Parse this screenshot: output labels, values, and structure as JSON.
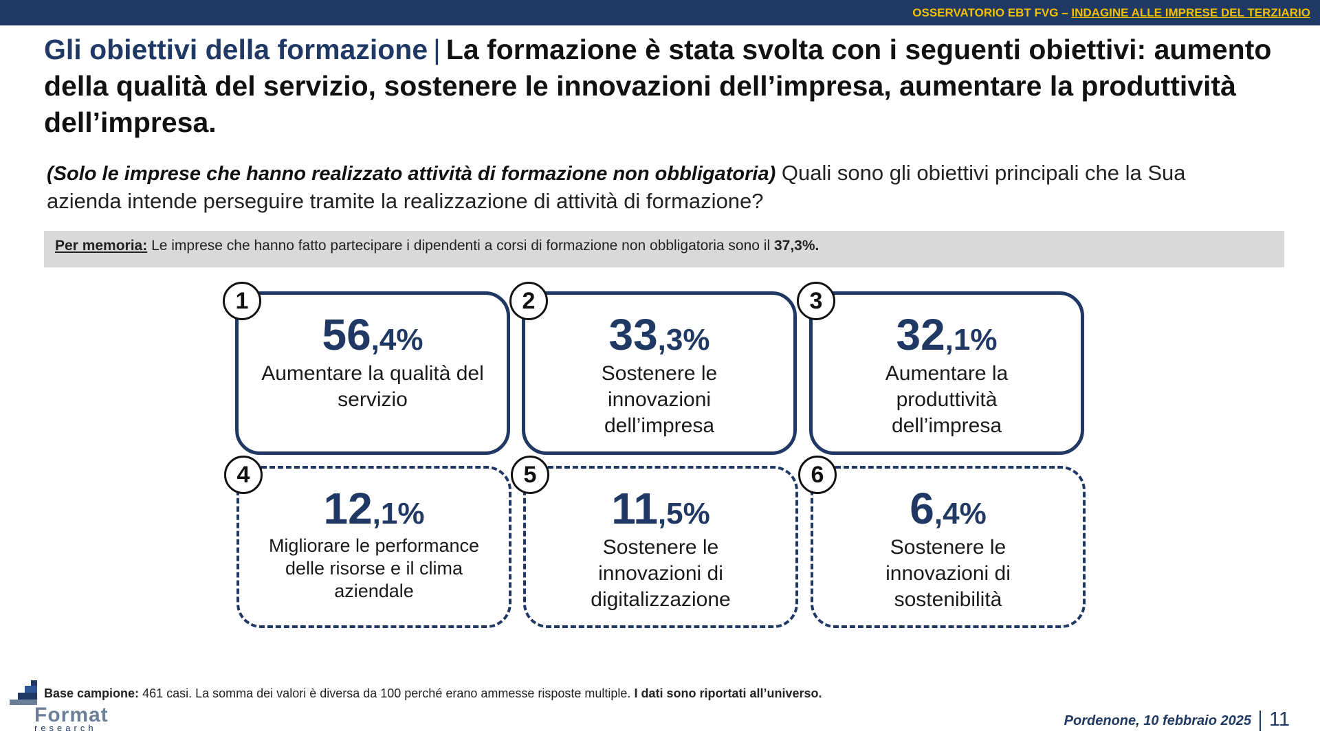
{
  "header": {
    "org": "OSSERVATORIO EBT FVG –",
    "survey": "INDAGINE ALLE IMPRESE DEL TERZIARIO"
  },
  "title": {
    "lead": "Gli obiettivi della formazione",
    "separator": "|",
    "text": "La formazione è stata svolta con i seguenti obiettivi: aumento della qualità del servizio, sostenere le innovazioni dell’impresa, aumentare la produttività dell’impresa."
  },
  "question": {
    "filter": "(Solo le imprese che hanno realizzato attività di formazione non obbligatoria)",
    "text": "Quali sono gli obiettivi principali che la Sua azienda intende perseguire tramite la realizzazione di attività di formazione?"
  },
  "memo": {
    "label": "Per memoria:",
    "text": "Le imprese che hanno fatto partecipare i dipendenti a corsi di formazione non obbligatoria sono il",
    "value": "37,3%."
  },
  "cards": [
    {
      "rank": "1",
      "int": "56",
      "dec": ",4%",
      "label": "Aumentare la qualità del servizio"
    },
    {
      "rank": "2",
      "int": "33",
      "dec": ",3%",
      "label": "Sostenere le innovazioni dell’impresa"
    },
    {
      "rank": "3",
      "int": "32",
      "dec": ",1%",
      "label": "Aumentare la produttività dell’impresa"
    },
    {
      "rank": "4",
      "int": "12",
      "dec": ",1%",
      "label": "Migliorare le performance delle risorse e il clima aziendale"
    },
    {
      "rank": "5",
      "int": "11",
      "dec": ",5%",
      "label": "Sostenere le innovazioni di digitalizzazione"
    },
    {
      "rank": "6",
      "int": "6",
      "dec": ",4%",
      "label": "Sostenere le innovazioni di sostenibilità"
    }
  ],
  "footer": {
    "base_label": "Base campione:",
    "base_text": "461 casi. La somma dei valori è diversa da 100 perché erano ammesse risposte multiple.",
    "base_bold": "I dati sono riportati all’universo.",
    "logo_brand": "Format",
    "logo_sub": "research",
    "date": "Pordenone, 10 febbraio 2025",
    "page": "11"
  },
  "colors": {
    "navy": "#1f3864",
    "gold": "#f2c000",
    "memo_bg": "#d9d9d9"
  }
}
